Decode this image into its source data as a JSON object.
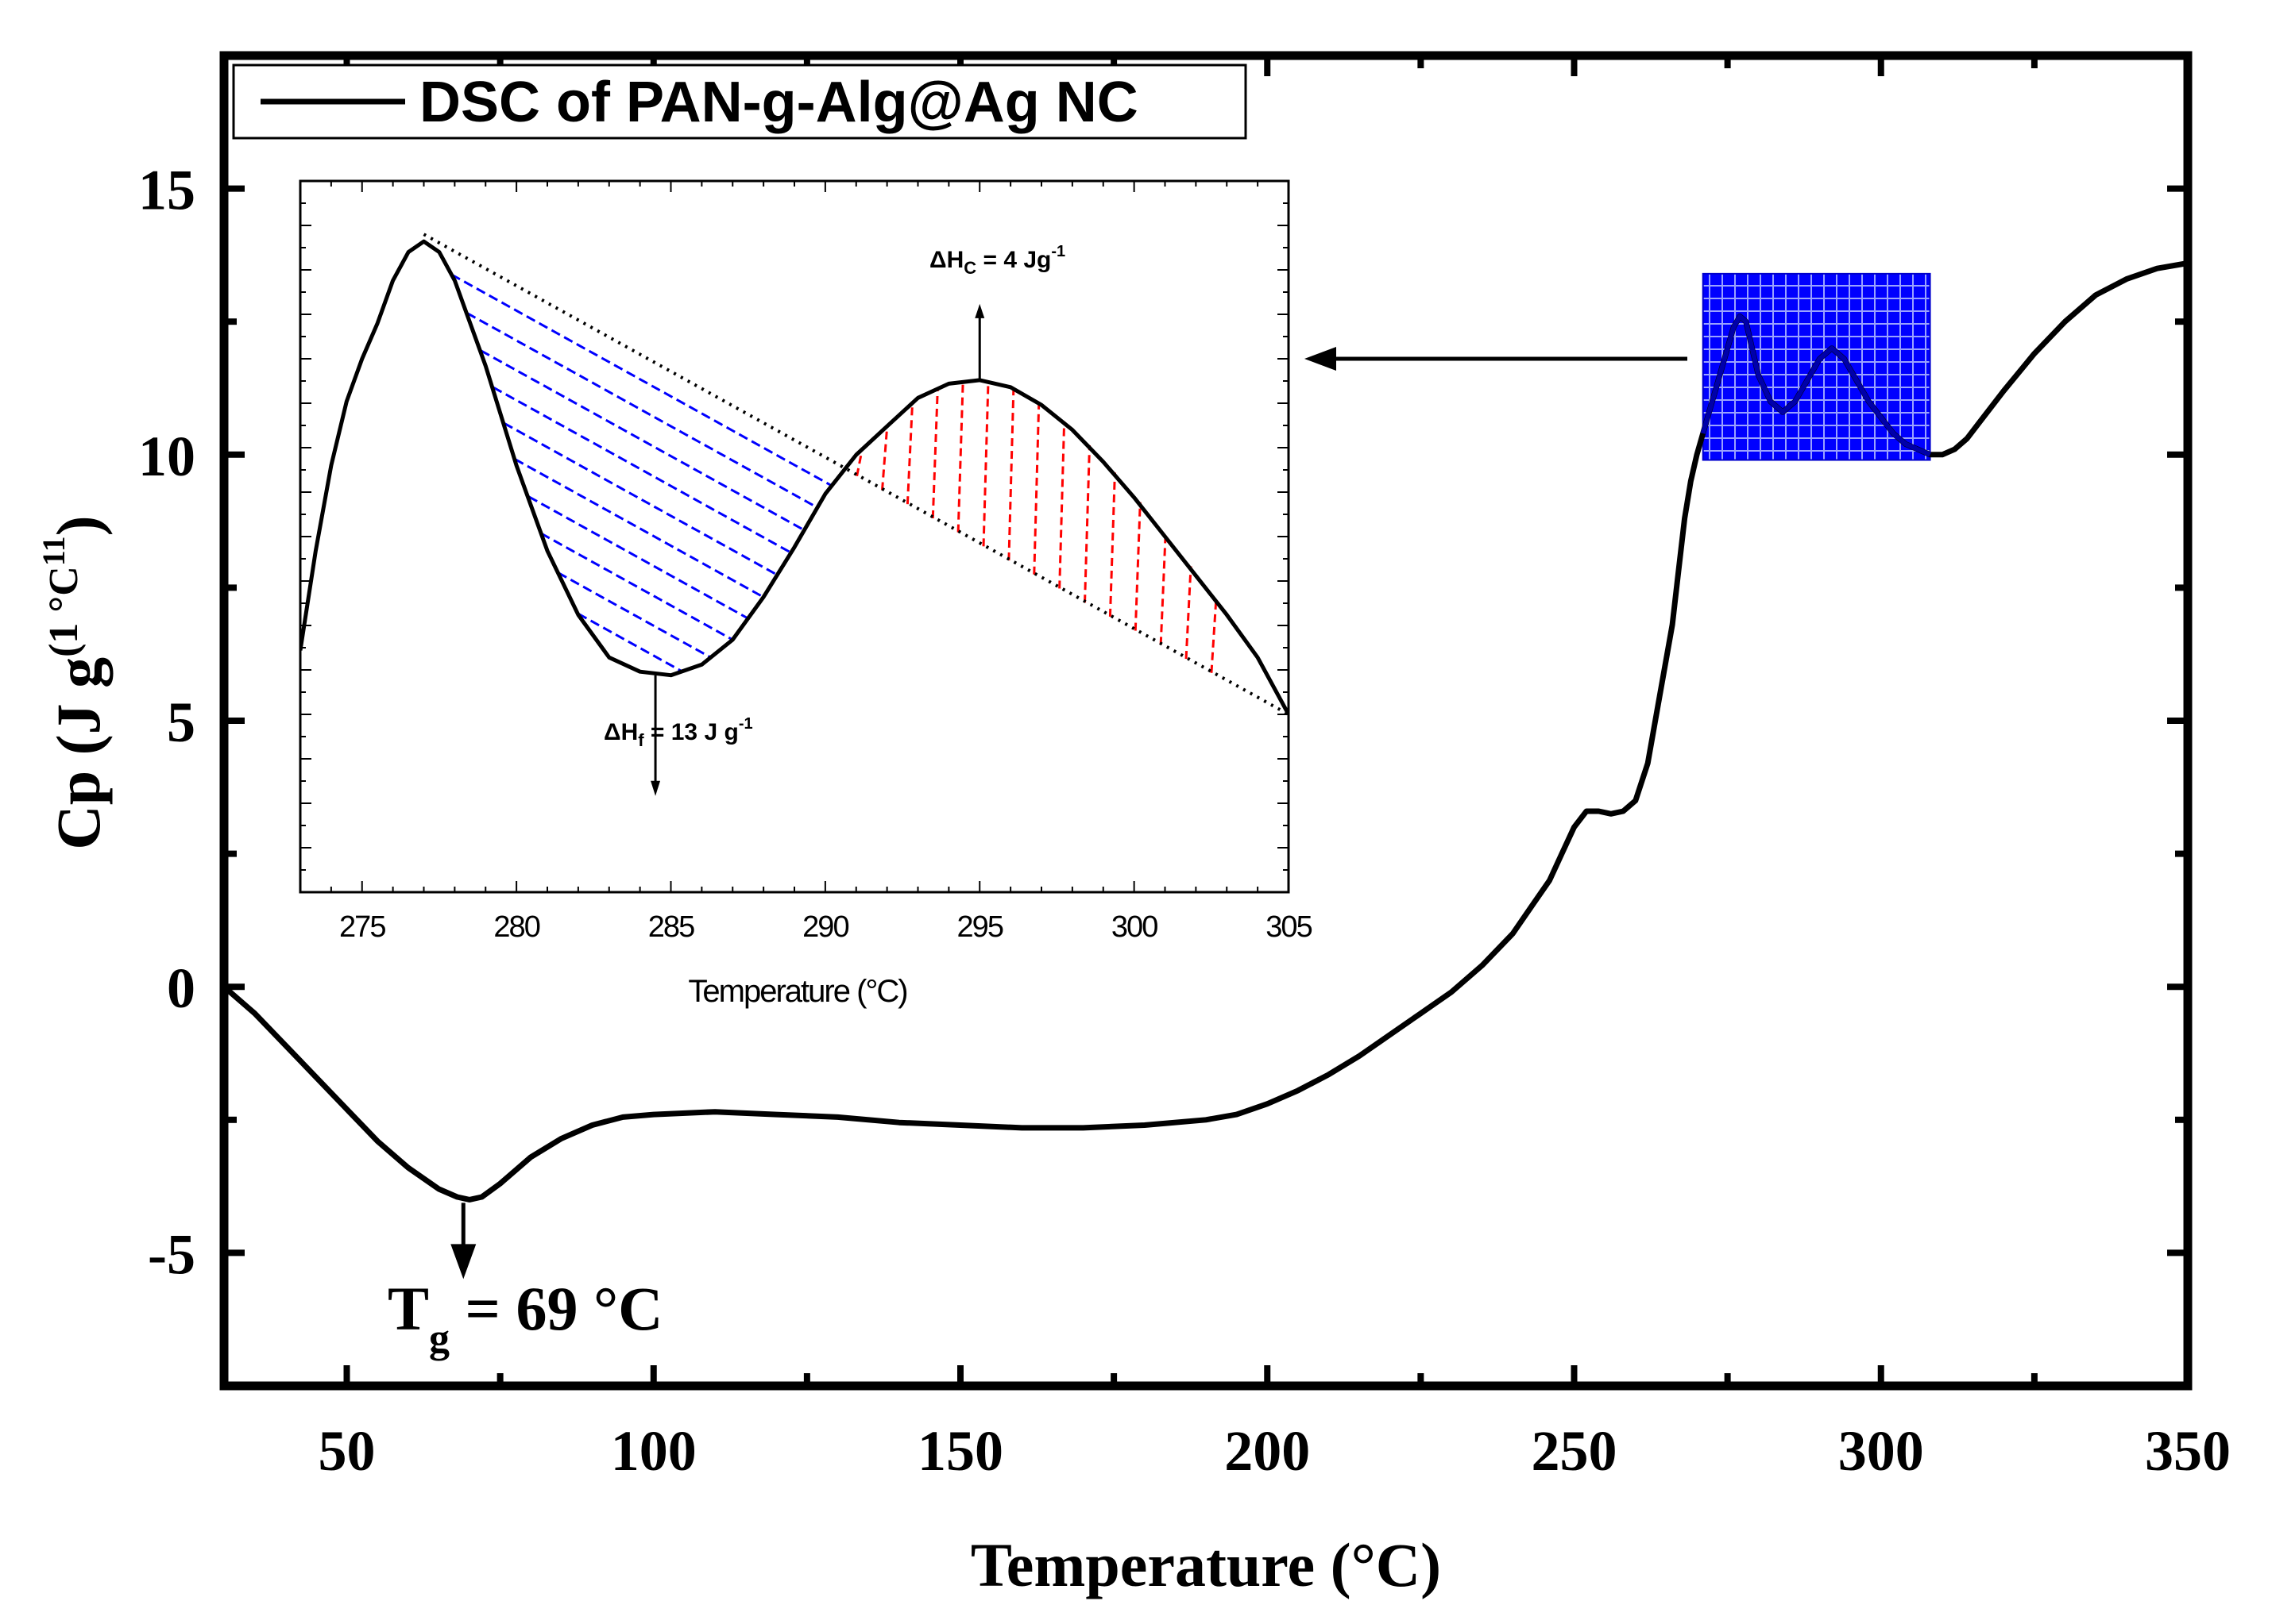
{
  "chart_data": [
    {
      "type": "line",
      "title": "",
      "xlabel": "Temperature (°C)",
      "ylabel_main": "Cp (J g",
      "ylabel_sup": "(1 °C",
      "ylabel_sup2": "11",
      "ylabel_close": ")",
      "xlim": [
        30,
        350
      ],
      "ylim": [
        -7.5,
        17.5
      ],
      "x_ticks": [
        50,
        100,
        150,
        200,
        250,
        300,
        350
      ],
      "x_tick_labels": [
        "50",
        "100",
        "150",
        "200",
        "250",
        "300",
        "350"
      ],
      "y_ticks": [
        -5,
        0,
        5,
        10,
        15
      ],
      "y_tick_labels": [
        "-5",
        "0",
        "5",
        "10",
        "15"
      ],
      "grid": false,
      "legend": {
        "placement": "top-left",
        "label": "DSC of PAN-g-Alg@Ag NC"
      },
      "series": [
        {
          "name": "DSC of PAN-g-Alg@Ag NC",
          "x": [
            30,
            35,
            40,
            45,
            50,
            55,
            60,
            65,
            68,
            70,
            72,
            75,
            80,
            85,
            90,
            95,
            100,
            110,
            120,
            130,
            140,
            150,
            160,
            170,
            180,
            190,
            195,
            200,
            205,
            210,
            215,
            220,
            225,
            230,
            235,
            240,
            243,
            246,
            248,
            250,
            252,
            254,
            256,
            258,
            260,
            262,
            264,
            266,
            267,
            268,
            269,
            270,
            271,
            272,
            273,
            274,
            275,
            276,
            277,
            278,
            279,
            280,
            282,
            284,
            286,
            288,
            290,
            292,
            294,
            296,
            298,
            300,
            302,
            304,
            306,
            308,
            310,
            312,
            314,
            316,
            320,
            325,
            330,
            335,
            340,
            345,
            350
          ],
          "y": [
            0.0,
            -0.5,
            -1.1,
            -1.7,
            -2.3,
            -2.9,
            -3.4,
            -3.8,
            -3.95,
            -4.0,
            -3.95,
            -3.7,
            -3.2,
            -2.85,
            -2.6,
            -2.45,
            -2.4,
            -2.35,
            -2.4,
            -2.45,
            -2.55,
            -2.6,
            -2.65,
            -2.65,
            -2.6,
            -2.5,
            -2.4,
            -2.2,
            -1.95,
            -1.65,
            -1.3,
            -0.9,
            -0.5,
            -0.1,
            0.4,
            1.0,
            1.5,
            2.0,
            2.5,
            3.0,
            3.3,
            3.3,
            3.25,
            3.3,
            3.5,
            4.2,
            5.5,
            6.8,
            7.8,
            8.8,
            9.5,
            10.0,
            10.4,
            10.8,
            11.2,
            11.6,
            12.0,
            12.4,
            12.6,
            12.5,
            12.0,
            11.5,
            11.0,
            10.8,
            11.0,
            11.4,
            11.8,
            12.0,
            11.8,
            11.4,
            11.0,
            10.7,
            10.4,
            10.2,
            10.1,
            10.0,
            10.0,
            10.1,
            10.3,
            10.6,
            11.2,
            11.9,
            12.5,
            13.0,
            13.3,
            13.5,
            13.6
          ]
        }
      ],
      "annotations": [
        {
          "text": "T",
          "sub": "g",
          "rest": " = 69 °C",
          "x": 69,
          "y": -4.0
        }
      ],
      "highlight_region": {
        "x_range": [
          271,
          308
        ],
        "y_range": [
          9.9,
          13.4
        ],
        "color": "#0000ff"
      }
    },
    {
      "type": "line",
      "inset": true,
      "xlabel": "Temperature (°C)",
      "xlim": [
        273,
        305
      ],
      "ylim": [
        0,
        10
      ],
      "x_ticks": [
        275,
        280,
        285,
        290,
        295,
        300,
        305
      ],
      "x_tick_labels": [
        "275",
        "280",
        "285",
        "290",
        "295",
        "300",
        "305"
      ],
      "series": [
        {
          "name": "DSC zoom",
          "x": [
            273,
            273.5,
            274,
            274.5,
            275,
            275.5,
            276,
            276.5,
            277,
            277.5,
            278,
            279,
            280,
            281,
            282,
            283,
            284,
            285,
            286,
            287,
            288,
            289,
            290,
            291,
            292,
            293,
            294,
            295,
            296,
            297,
            298,
            299,
            300,
            301,
            302,
            303,
            304,
            305
          ],
          "y": [
            3.4,
            4.8,
            6.0,
            6.9,
            7.5,
            8.0,
            8.6,
            9.0,
            9.15,
            9.0,
            8.6,
            7.4,
            6.0,
            4.8,
            3.9,
            3.3,
            3.1,
            3.05,
            3.2,
            3.55,
            4.15,
            4.85,
            5.6,
            6.15,
            6.55,
            6.95,
            7.15,
            7.2,
            7.1,
            6.85,
            6.5,
            6.05,
            5.55,
            5.0,
            4.45,
            3.9,
            3.3,
            2.5
          ],
          "color": "#000000"
        },
        {
          "name": "baseline",
          "x": [
            277,
            305
          ],
          "y": [
            9.25,
            2.5
          ],
          "style": "dotted",
          "color": "#000000"
        }
      ],
      "fill_regions": [
        {
          "x_range": [
            278.2,
            291.1
          ],
          "color": "#0000ff",
          "hatch": "dashed-diagonal"
        },
        {
          "x_range": [
            291.1,
            303.2
          ],
          "color": "#ff0000",
          "hatch": "dashed-vertical"
        }
      ],
      "annotations": [
        {
          "text": "ΔH",
          "sub": "C",
          "rest": " = 4 Jg",
          "sup": "-1",
          "x": 295,
          "y": 7.2,
          "arrow": "up"
        },
        {
          "text": "ΔH",
          "sub": "f",
          "rest": " = 13 J g",
          "sup": "-1",
          "x": 284.5,
          "y": 3.05,
          "arrow": "down"
        }
      ]
    }
  ]
}
